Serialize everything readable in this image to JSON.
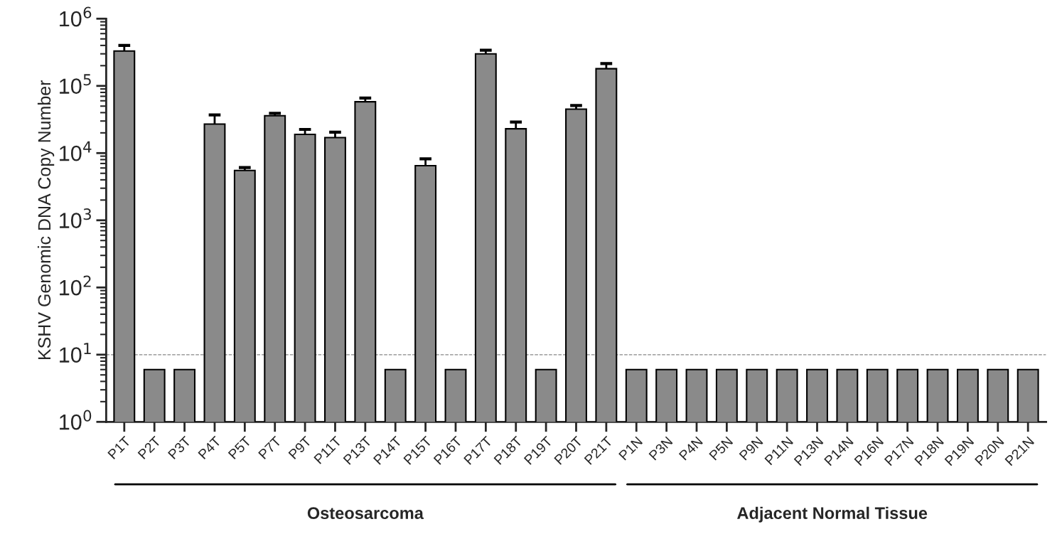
{
  "chart_data": {
    "type": "bar",
    "ylabel": "KSHV Genomic DNA Copy Number",
    "categories": [
      "P1T",
      "P2T",
      "P3T",
      "P4T",
      "P5T",
      "P7T",
      "P9T",
      "P11T",
      "P13T",
      "P14T",
      "P15T",
      "P16T",
      "P17T",
      "P18T",
      "P19T",
      "P20T",
      "P21T",
      "P1N",
      "P3N",
      "P4N",
      "P5N",
      "P9N",
      "P11N",
      "P13N",
      "P14N",
      "P16N",
      "P17N",
      "P18N",
      "P19N",
      "P20N",
      "P21N"
    ],
    "values": [
      330000,
      6,
      6,
      27000,
      5500,
      36000,
      19000,
      17000,
      58000,
      6,
      6500,
      6,
      300000,
      23000,
      6,
      45000,
      180000,
      6,
      6,
      6,
      6,
      6,
      6,
      6,
      6,
      6,
      6,
      6,
      6,
      6,
      6
    ],
    "errors": [
      70000,
      null,
      null,
      10000,
      600,
      3000,
      3500,
      3500,
      8000,
      null,
      1700,
      null,
      40000,
      6000,
      null,
      6000,
      35000,
      null,
      null,
      null,
      null,
      null,
      null,
      null,
      null,
      null,
      null,
      null,
      null,
      null,
      null
    ],
    "color": "#8a8a8a",
    "log": "y",
    "ylim": [
      1,
      1000000
    ],
    "yticks": [
      {
        "value": 1,
        "label": "10$^{0}$"
      },
      {
        "value": 10,
        "label": "10$^{1}$"
      },
      {
        "value": 100,
        "label": "10$^{2}$"
      },
      {
        "value": 1000,
        "label": "10$^{3}$"
      },
      {
        "value": 10000,
        "label": "10$^{4}$"
      },
      {
        "value": 100000,
        "label": "10$^{5}$"
      },
      {
        "value": 1000000,
        "label": "10$^{6}$"
      }
    ],
    "ref_lines": [
      {
        "axis": "y",
        "value": 10,
        "color": "#888888",
        "line_style": "dashed"
      }
    ],
    "annotations": [
      "Osteosarcoma",
      "Adjacent Normal Tissue"
    ],
    "grid": false,
    "legend": false
  }
}
